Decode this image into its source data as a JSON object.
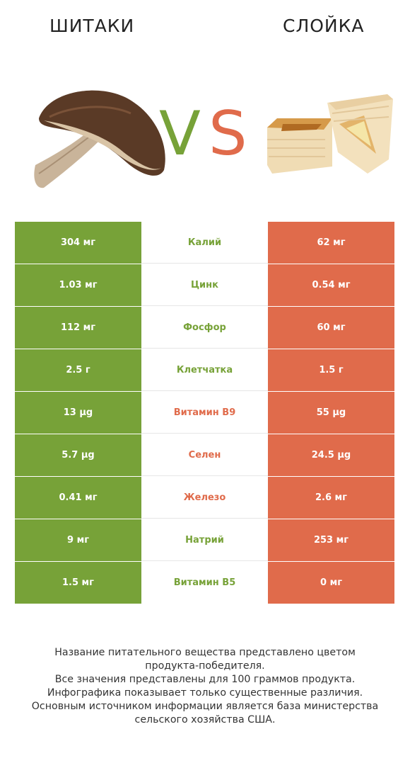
{
  "header": {
    "left_title": "ШИТАКИ",
    "right_title": "СЛОЙКА"
  },
  "vs": {
    "v": "V",
    "s": "S"
  },
  "colors": {
    "winner_left": "#77a238",
    "winner_right": "#e06b4b"
  },
  "rows": [
    {
      "left": "304 мг",
      "nutrient": "Калий",
      "right": "62 мг",
      "winner": "left"
    },
    {
      "left": "1.03 мг",
      "nutrient": "Цинк",
      "right": "0.54 мг",
      "winner": "left"
    },
    {
      "left": "112 мг",
      "nutrient": "Фосфор",
      "right": "60 мг",
      "winner": "left"
    },
    {
      "left": "2.5 г",
      "nutrient": "Клетчатка",
      "right": "1.5 г",
      "winner": "left"
    },
    {
      "left": "13 µg",
      "nutrient": "Витамин B9",
      "right": "55 µg",
      "winner": "right"
    },
    {
      "left": "5.7 µg",
      "nutrient": "Селен",
      "right": "24.5 µg",
      "winner": "right"
    },
    {
      "left": "0.41 мг",
      "nutrient": "Железо",
      "right": "2.6 мг",
      "winner": "right"
    },
    {
      "left": "9 мг",
      "nutrient": "Натрий",
      "right": "253 мг",
      "winner": "left"
    },
    {
      "left": "1.5 мг",
      "nutrient": "Витамин B5",
      "right": "0 мг",
      "winner": "left"
    }
  ],
  "footer": {
    "line1": "Название питательного вещества представлено цветом",
    "line2": "продукта-победителя.",
    "line3": "Все значения представлены для 100 граммов продукта.",
    "line4": "Инфографика показывает только существенные различия.",
    "line5": "Основным источником информации является база министерства",
    "line6": "сельского хозяйства США."
  }
}
